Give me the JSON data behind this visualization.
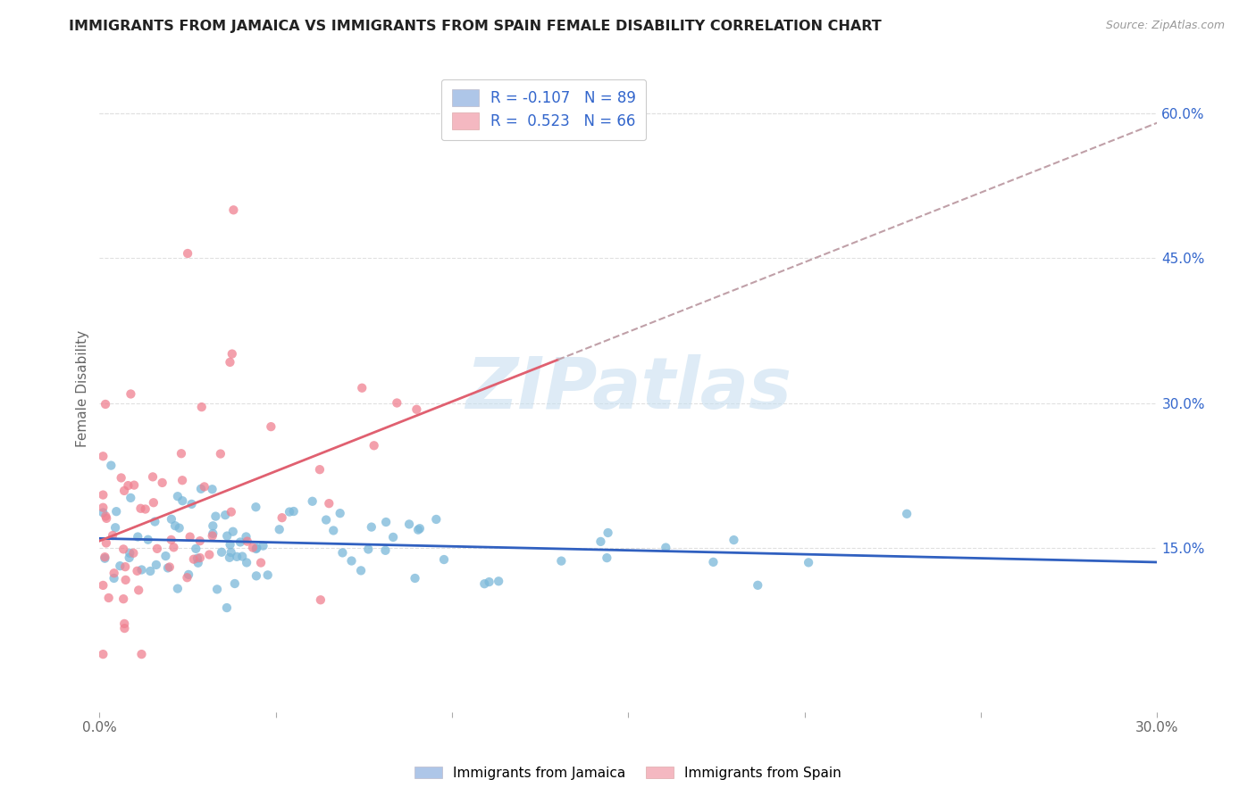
{
  "title": "IMMIGRANTS FROM JAMAICA VS IMMIGRANTS FROM SPAIN FEMALE DISABILITY CORRELATION CHART",
  "source": "Source: ZipAtlas.com",
  "ylabel": "Female Disability",
  "xlim": [
    0.0,
    0.3
  ],
  "ylim": [
    -0.02,
    0.65
  ],
  "x_tick_positions": [
    0.0,
    0.05,
    0.1,
    0.15,
    0.2,
    0.25,
    0.3
  ],
  "x_tick_labels": [
    "0.0%",
    "",
    "",
    "",
    "",
    "",
    "30.0%"
  ],
  "y_ticks_right": [
    0.15,
    0.3,
    0.45,
    0.6
  ],
  "y_tick_labels_right": [
    "15.0%",
    "30.0%",
    "45.0%",
    "60.0%"
  ],
  "series1_name": "Immigrants from Jamaica",
  "series2_name": "Immigrants from Spain",
  "series1_color": "#7ab8d9",
  "series2_color": "#f08090",
  "trendline1_color": "#3060c0",
  "trendline2_color": "#e06070",
  "trendline2_dash_color": "#c0a0a8",
  "background_color": "#ffffff",
  "watermark_text": "ZIPatlas",
  "watermark_color": "#c8dff0",
  "R1": -0.107,
  "N1": 89,
  "R2": 0.523,
  "N2": 66,
  "legend_text_color": "#3366cc",
  "right_axis_color": "#3366cc",
  "grid_color": "#e0e0e0",
  "title_color": "#222222",
  "source_color": "#999999",
  "ylabel_color": "#666666"
}
